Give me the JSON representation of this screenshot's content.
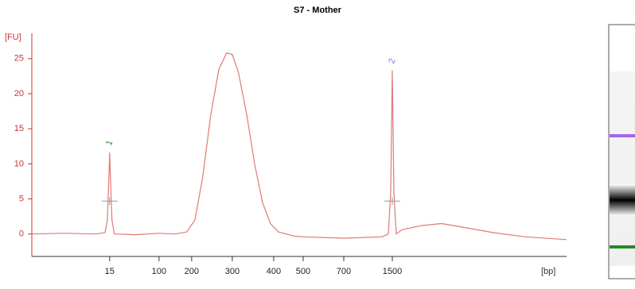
{
  "chart_data": {
    "type": "line",
    "title": "S7 - Mother",
    "ylabel": "[FU]",
    "xlabel": "[bp]",
    "x": [
      -119,
      -65,
      -10,
      7,
      11,
      14,
      15,
      16,
      19,
      23,
      59,
      100,
      149,
      185,
      208,
      227,
      247,
      267,
      286,
      300,
      315,
      335,
      354,
      373,
      392,
      416,
      470,
      500,
      700,
      1329,
      1434,
      1474,
      1500,
      1526,
      1565,
      1657,
      1985,
      2312,
      2640,
      3164,
      3689,
      4370
    ],
    "values": [
      0,
      0.1,
      0,
      0.2,
      2,
      9,
      11.6,
      9,
      2,
      0,
      -0.1,
      0.1,
      0,
      0.3,
      2,
      8,
      17,
      23.5,
      25.8,
      25.6,
      23,
      17,
      10,
      4.5,
      1.5,
      0.3,
      -0.3,
      -0.4,
      -0.6,
      -0.4,
      0,
      6,
      23.3,
      6,
      0,
      0.6,
      1.2,
      1.5,
      1,
      0.2,
      -0.4,
      -0.8
    ],
    "color": "#e07a74",
    "xlim": [
      -119,
      4370
    ],
    "xticks": [
      15,
      100,
      200,
      300,
      400,
      500,
      700,
      1500
    ],
    "ylim": [
      -3.2,
      28.6
    ],
    "yticks": [
      0,
      5,
      10,
      15,
      20,
      25
    ],
    "annotations": [
      {
        "text": "1",
        "color": "#2e8b2e"
      },
      {
        "text": "2",
        "color": "#9b5cf0"
      }
    ]
  }
}
